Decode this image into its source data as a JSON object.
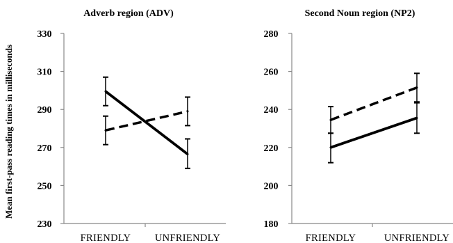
{
  "figure": {
    "ylabel": "Mean first-pass reading times in milliseconds"
  },
  "chart_data": [
    {
      "type": "line",
      "title": "Adverb region (ADV)",
      "xlabel": "",
      "ylabel": "Mean first-pass reading times in milliseconds",
      "categories": [
        "FRIENDLY",
        "UNFRIENDLY"
      ],
      "ylim": [
        230,
        330
      ],
      "yticks": [
        230,
        250,
        270,
        290,
        310,
        330
      ],
      "grid": false,
      "series": [
        {
          "style": "solid",
          "values": [
            299.5,
            266.5
          ],
          "err_low": [
            292,
            259
          ],
          "err_high": [
            307,
            274.5
          ],
          "color": "#000000"
        },
        {
          "style": "dashed",
          "values": [
            279,
            289
          ],
          "err_low": [
            271.5,
            281.5
          ],
          "err_high": [
            286.5,
            296.5
          ],
          "color": "#000000"
        }
      ]
    },
    {
      "type": "line",
      "title": "Second Noun region (NP2)",
      "xlabel": "",
      "ylabel": "",
      "categories": [
        "FRIENDLY",
        "UNFRIENDLY"
      ],
      "ylim": [
        180,
        280
      ],
      "yticks": [
        180,
        200,
        220,
        240,
        260,
        280
      ],
      "grid": false,
      "series": [
        {
          "style": "solid",
          "values": [
            220,
            235.5
          ],
          "err_low": [
            212,
            227.5
          ],
          "err_high": [
            227.5,
            243.5
          ],
          "color": "#000000"
        },
        {
          "style": "dashed",
          "values": [
            234.5,
            251.5
          ],
          "err_low": [
            227.5,
            244
          ],
          "err_high": [
            241.5,
            259
          ],
          "color": "#000000"
        }
      ]
    }
  ]
}
